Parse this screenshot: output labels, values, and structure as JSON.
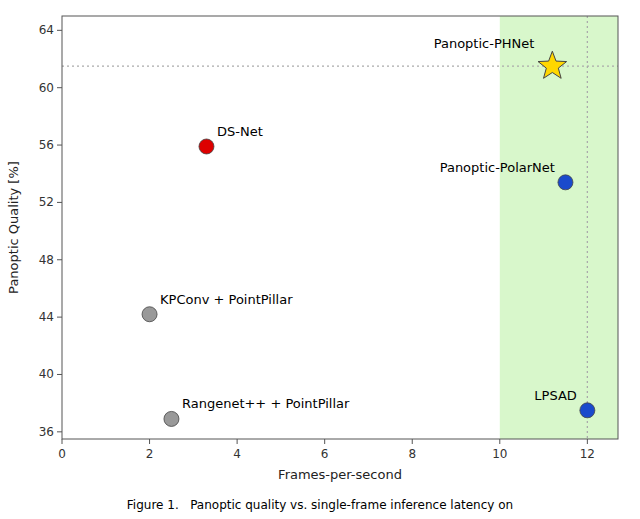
{
  "chart_data": {
    "type": "scatter",
    "xlabel": "Frames-per-second",
    "ylabel": "Panoptic Quality [%]",
    "caption": "Figure 1.   Panoptic quality vs. single-frame inference latency on",
    "xlim": [
      0,
      12.7
    ],
    "ylim": [
      35.5,
      65.0
    ],
    "xticks": [
      0,
      2,
      4,
      6,
      8,
      10,
      12
    ],
    "yticks": [
      36,
      40,
      44,
      48,
      52,
      56,
      60,
      64
    ],
    "grid": false,
    "series": [
      {
        "name": "DS-Net",
        "color": "#dd0000",
        "marker": "circle",
        "x": [
          3.3
        ],
        "values": [
          55.9
        ]
      },
      {
        "name": "KPConv + PointPillar",
        "color": "#999999",
        "marker": "circle",
        "x": [
          2.0
        ],
        "values": [
          44.2
        ]
      },
      {
        "name": "Rangenet++ + PointPillar",
        "color": "#999999",
        "marker": "circle",
        "x": [
          2.5
        ],
        "values": [
          36.9
        ]
      },
      {
        "name": "Panoptic-PolarNet",
        "color": "#1a4acc",
        "marker": "circle",
        "x": [
          11.5
        ],
        "values": [
          53.4
        ]
      },
      {
        "name": "LPSAD",
        "color": "#1a4acc",
        "marker": "circle",
        "x": [
          12.0
        ],
        "values": [
          37.5
        ]
      },
      {
        "name": "Panoptic-PHNet",
        "color": "#FFD700",
        "marker": "star",
        "x": [
          11.2
        ],
        "values": [
          61.5
        ]
      }
    ],
    "annotations": [
      {
        "type": "span",
        "x": [
          10.0,
          12.7
        ],
        "color": "#b8f0a0"
      },
      {
        "type": "hline",
        "y": 61.5,
        "color": "#aaaaaa"
      },
      {
        "type": "vline",
        "x": 12.0,
        "color": "#aaaaaa"
      }
    ]
  }
}
